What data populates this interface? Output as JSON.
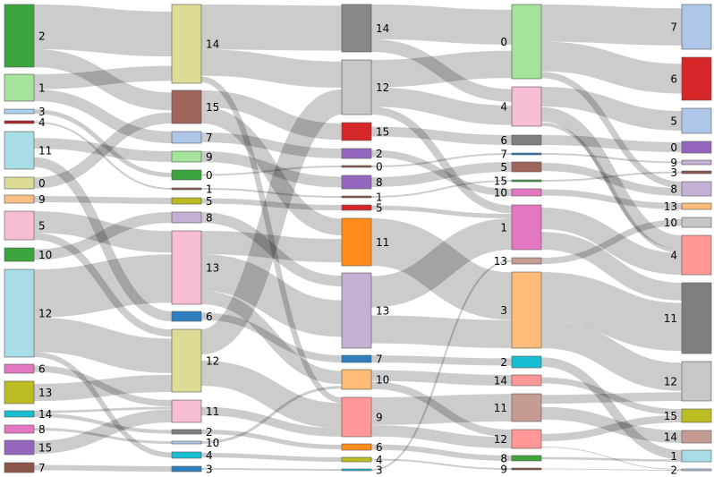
{
  "diagram": {
    "type": "sankey",
    "columns": [
      {
        "nodes": [
          {
            "label": "2",
            "color": "#3ca43c"
          },
          {
            "label": "1",
            "color": "#a3e39a"
          },
          {
            "label": "3",
            "color": "#a9d2ec"
          },
          {
            "label": "4",
            "color": "#b22222"
          },
          {
            "label": "11",
            "color": "#a8dde8"
          },
          {
            "label": "0",
            "color": "#dcdc96"
          },
          {
            "label": "9",
            "color": "#f9be84"
          },
          {
            "label": "5",
            "color": "#f7bcd6"
          },
          {
            "label": "10",
            "color": "#3ca43c"
          },
          {
            "label": "12",
            "color": "#a8dde8"
          },
          {
            "label": "6",
            "color": "#e377c2"
          },
          {
            "label": "13",
            "color": "#bcbd22"
          },
          {
            "label": "14",
            "color": "#17becf"
          },
          {
            "label": "8",
            "color": "#e377c2"
          },
          {
            "label": "15",
            "color": "#9467bd"
          },
          {
            "label": "7",
            "color": "#8c564b"
          }
        ]
      },
      {
        "nodes": [
          {
            "label": "14",
            "color": "#dcdc96"
          },
          {
            "label": "15",
            "color": "#9e655a"
          },
          {
            "label": "7",
            "color": "#aec7e8"
          },
          {
            "label": "9",
            "color": "#a3e39a"
          },
          {
            "label": "0",
            "color": "#3ca43c"
          },
          {
            "label": "1",
            "color": "#8c564b"
          },
          {
            "label": "5",
            "color": "#bcbd22"
          },
          {
            "label": "8",
            "color": "#c5b0d5"
          },
          {
            "label": "13",
            "color": "#f7bcd6"
          },
          {
            "label": "6",
            "color": "#2f7fbf"
          },
          {
            "label": "12",
            "color": "#dcdc96"
          },
          {
            "label": "11",
            "color": "#f7bcd6"
          },
          {
            "label": "2",
            "color": "#7f7f7f"
          },
          {
            "label": "10",
            "color": "#aec7e8"
          },
          {
            "label": "4",
            "color": "#17becf"
          },
          {
            "label": "3",
            "color": "#2f7fbf"
          }
        ]
      },
      {
        "nodes": [
          {
            "label": "14",
            "color": "#888888"
          },
          {
            "label": "12",
            "color": "#c7c7c7"
          },
          {
            "label": "15",
            "color": "#d62728"
          },
          {
            "label": "2",
            "color": "#9467bd"
          },
          {
            "label": "0",
            "color": "#8c564b"
          },
          {
            "label": "8",
            "color": "#9467bd"
          },
          {
            "label": "1",
            "color": "#8c564b"
          },
          {
            "label": "5",
            "color": "#d62728"
          },
          {
            "label": "11",
            "color": "#ff8c1a"
          },
          {
            "label": "13",
            "color": "#c5b0d5"
          },
          {
            "label": "7",
            "color": "#2f7fbf"
          },
          {
            "label": "10",
            "color": "#ffbb78"
          },
          {
            "label": "9",
            "color": "#ff9896"
          },
          {
            "label": "6",
            "color": "#ff8c1a"
          },
          {
            "label": "4",
            "color": "#bcbd22"
          },
          {
            "label": "3",
            "color": "#17becf"
          }
        ]
      },
      {
        "nodes": [
          {
            "label": "0",
            "color": "#a3e39a"
          },
          {
            "label": "4",
            "color": "#f7bcd6"
          },
          {
            "label": "6",
            "color": "#7f7f7f"
          },
          {
            "label": "7",
            "color": "#2f7fbf"
          },
          {
            "label": "5",
            "color": "#9e655a"
          },
          {
            "label": "15",
            "color": "#3ca43c"
          },
          {
            "label": "10",
            "color": "#e377c2"
          },
          {
            "label": "1",
            "color": "#e377c2"
          },
          {
            "label": "13",
            "color": "#c49c94"
          },
          {
            "label": "3",
            "color": "#ffbb78"
          },
          {
            "label": "2",
            "color": "#17becf"
          },
          {
            "label": "14",
            "color": "#ff9896"
          },
          {
            "label": "11",
            "color": "#c49c94"
          },
          {
            "label": "12",
            "color": "#ff9896"
          },
          {
            "label": "8",
            "color": "#3ca43c"
          },
          {
            "label": "9",
            "color": "#8c564b"
          }
        ]
      },
      {
        "nodes": [
          {
            "label": "7",
            "color": "#aec7e8"
          },
          {
            "label": "6",
            "color": "#d62728"
          },
          {
            "label": "5",
            "color": "#aec7e8"
          },
          {
            "label": "0",
            "color": "#9467bd"
          },
          {
            "label": "9",
            "color": "#c5b0d5"
          },
          {
            "label": "3",
            "color": "#8c564b"
          },
          {
            "label": "8",
            "color": "#c5b0d5"
          },
          {
            "label": "13",
            "color": "#ffbb78"
          },
          {
            "label": "10",
            "color": "#c7c7c7"
          },
          {
            "label": "4",
            "color": "#ff9896"
          },
          {
            "label": "11",
            "color": "#7f7f7f"
          },
          {
            "label": "12",
            "color": "#c7c7c7"
          },
          {
            "label": "15",
            "color": "#bcbd22"
          },
          {
            "label": "14",
            "color": "#c49c94"
          },
          {
            "label": "1",
            "color": "#a8dde8"
          },
          {
            "label": "2",
            "color": "#aec7e8"
          }
        ]
      }
    ],
    "links": [
      [
        0,
        0,
        1,
        0,
        30
      ],
      [
        0,
        1,
        1,
        2,
        8
      ],
      [
        0,
        2,
        1,
        4,
        3
      ],
      [
        0,
        3,
        1,
        5,
        1
      ],
      [
        0,
        4,
        1,
        3,
        10
      ],
      [
        0,
        5,
        1,
        1,
        6
      ],
      [
        0,
        6,
        1,
        6,
        3
      ],
      [
        0,
        7,
        1,
        8,
        12
      ],
      [
        0,
        8,
        1,
        7,
        6
      ],
      [
        0,
        9,
        1,
        8,
        28
      ],
      [
        0,
        9,
        1,
        10,
        20
      ],
      [
        0,
        10,
        1,
        11,
        4
      ],
      [
        0,
        11,
        1,
        10,
        9
      ],
      [
        0,
        12,
        1,
        12,
        3
      ],
      [
        0,
        13,
        1,
        13,
        2
      ],
      [
        0,
        14,
        1,
        11,
        8
      ],
      [
        0,
        15,
        1,
        15,
        3
      ],
      [
        0,
        0,
        1,
        1,
        12
      ],
      [
        0,
        4,
        1,
        9,
        6
      ],
      [
        0,
        9,
        1,
        14,
        3
      ],
      [
        0,
        1,
        1,
        0,
        10
      ],
      [
        0,
        7,
        1,
        10,
        4
      ],
      [
        0,
        12,
        1,
        11,
        2
      ],
      [
        1,
        0,
        2,
        0,
        24
      ],
      [
        1,
        0,
        2,
        1,
        14
      ],
      [
        1,
        1,
        2,
        2,
        8
      ],
      [
        1,
        1,
        2,
        8,
        8
      ],
      [
        1,
        2,
        2,
        3,
        5
      ],
      [
        1,
        3,
        2,
        5,
        6
      ],
      [
        1,
        4,
        2,
        4,
        1
      ],
      [
        1,
        5,
        2,
        6,
        1
      ],
      [
        1,
        6,
        2,
        7,
        2
      ],
      [
        1,
        7,
        2,
        9,
        6
      ],
      [
        1,
        8,
        2,
        9,
        22
      ],
      [
        1,
        8,
        2,
        11,
        8
      ],
      [
        1,
        9,
        2,
        10,
        3
      ],
      [
        1,
        10,
        2,
        12,
        18
      ],
      [
        1,
        10,
        2,
        1,
        12
      ],
      [
        1,
        11,
        2,
        12,
        6
      ],
      [
        1,
        12,
        2,
        13,
        3
      ],
      [
        1,
        13,
        2,
        11,
        2
      ],
      [
        1,
        14,
        2,
        14,
        3
      ],
      [
        1,
        15,
        2,
        15,
        1
      ],
      [
        1,
        8,
        2,
        8,
        14
      ],
      [
        1,
        0,
        2,
        12,
        4
      ],
      [
        2,
        0,
        3,
        0,
        22
      ],
      [
        2,
        1,
        3,
        0,
        14
      ],
      [
        2,
        1,
        3,
        1,
        10
      ],
      [
        2,
        2,
        3,
        2,
        4
      ],
      [
        2,
        3,
        3,
        6,
        4
      ],
      [
        2,
        4,
        3,
        3,
        1
      ],
      [
        2,
        5,
        3,
        4,
        6
      ],
      [
        2,
        6,
        3,
        5,
        1
      ],
      [
        2,
        7,
        3,
        7,
        2
      ],
      [
        2,
        8,
        3,
        9,
        24
      ],
      [
        2,
        9,
        3,
        9,
        14
      ],
      [
        2,
        9,
        3,
        7,
        14
      ],
      [
        2,
        10,
        3,
        10,
        4
      ],
      [
        2,
        11,
        3,
        11,
        6
      ],
      [
        2,
        11,
        3,
        13,
        4
      ],
      [
        2,
        12,
        3,
        12,
        14
      ],
      [
        2,
        12,
        3,
        13,
        6
      ],
      [
        2,
        13,
        3,
        14,
        2
      ],
      [
        2,
        14,
        3,
        15,
        1
      ],
      [
        2,
        15,
        3,
        8,
        1
      ],
      [
        2,
        0,
        3,
        1,
        8
      ],
      [
        2,
        1,
        3,
        7,
        4
      ],
      [
        3,
        0,
        4,
        0,
        20
      ],
      [
        3,
        0,
        4,
        1,
        16
      ],
      [
        3,
        1,
        4,
        2,
        10
      ],
      [
        3,
        1,
        4,
        9,
        8
      ],
      [
        3,
        2,
        4,
        3,
        4
      ],
      [
        3,
        3,
        4,
        4,
        1
      ],
      [
        3,
        4,
        4,
        6,
        5
      ],
      [
        3,
        5,
        4,
        5,
        1
      ],
      [
        3,
        6,
        4,
        7,
        2
      ],
      [
        3,
        7,
        4,
        9,
        12
      ],
      [
        3,
        7,
        4,
        10,
        8
      ],
      [
        3,
        8,
        4,
        8,
        1
      ],
      [
        3,
        9,
        4,
        10,
        24
      ],
      [
        3,
        9,
        4,
        11,
        14
      ],
      [
        3,
        10,
        4,
        14,
        4
      ],
      [
        3,
        11,
        4,
        12,
        5
      ],
      [
        3,
        12,
        4,
        13,
        6
      ],
      [
        3,
        12,
        4,
        11,
        4
      ],
      [
        3,
        13,
        4,
        15,
        1
      ],
      [
        3,
        13,
        4,
        12,
        6
      ],
      [
        3,
        14,
        4,
        14,
        1
      ],
      [
        3,
        15,
        4,
        15,
        1
      ],
      [
        3,
        0,
        4,
        6,
        4
      ],
      [
        3,
        1,
        4,
        9,
        2
      ]
    ]
  }
}
